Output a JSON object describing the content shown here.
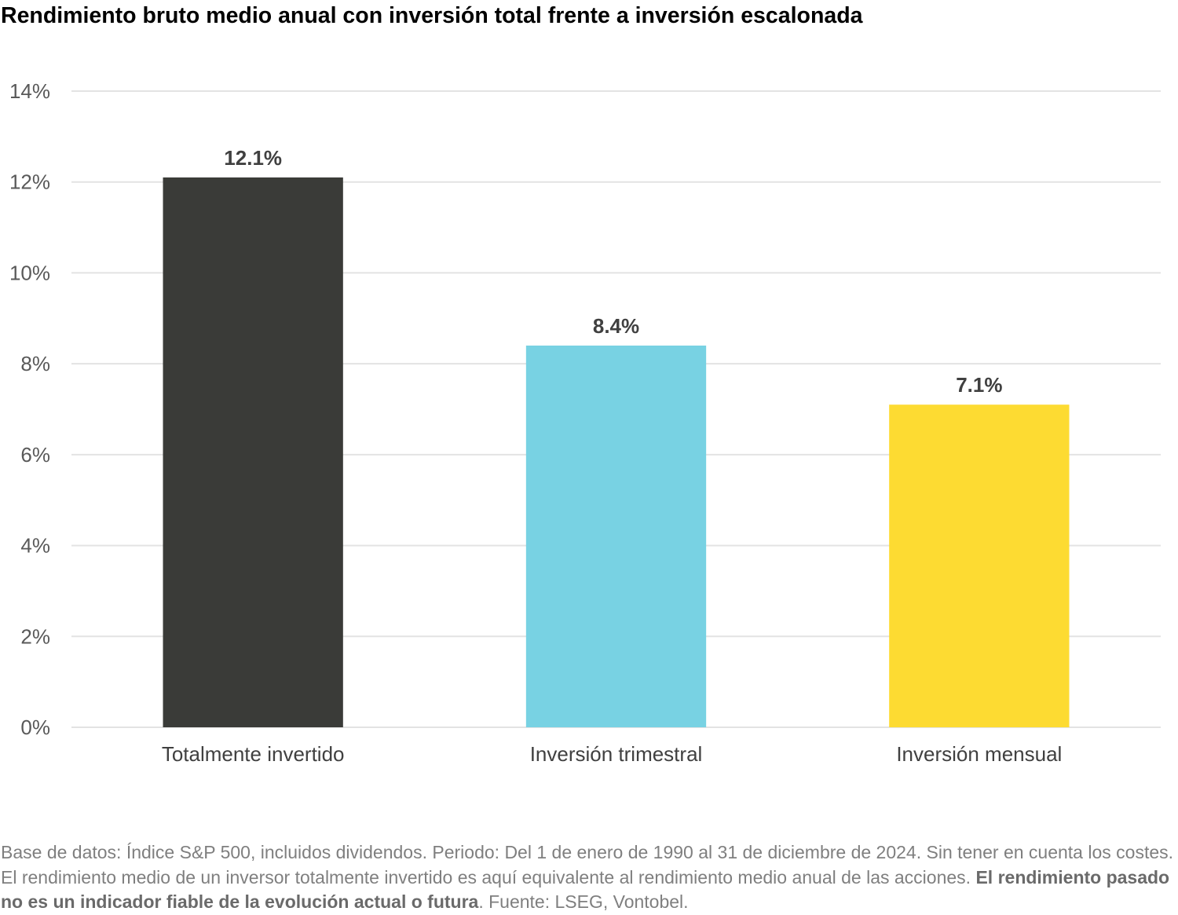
{
  "chart_data": {
    "type": "bar",
    "title": "Rendimiento bruto medio anual con inversión total frente a inversión escalonada",
    "xlabel": "",
    "ylabel": "",
    "categories": [
      "Totalmente invertido",
      "Inversión trimestral",
      "Inversión mensual"
    ],
    "values": [
      12.1,
      8.4,
      7.1
    ],
    "data_labels": [
      "12.1%",
      "8.4%",
      "7.1%"
    ],
    "colors": [
      "#3a3b38",
      "#78d2e3",
      "#fddb32"
    ],
    "ylim": [
      0,
      14
    ],
    "yticks": [
      0,
      2,
      4,
      6,
      8,
      10,
      12,
      14
    ],
    "ytick_labels": [
      "0%",
      "2%",
      "4%",
      "6%",
      "8%",
      "10%",
      "12%",
      "14%"
    ],
    "grid": true,
    "legend": "none"
  },
  "footer": {
    "text_1": "Base de datos: Índice S&P 500, incluidos dividendos. Periodo: Del 1 de enero de 1990 al 31 de diciembre de 2024. Sin tener en cuenta los costes. El rendimiento medio de un inversor totalmente invertido es aquí equivalente al rendimiento medio anual de las acciones. ",
    "bold": "El rendimiento pasado no es un indicador fiable de la evolución actual o futura",
    "text_2": ". Fuente: LSEG, Vontobel."
  }
}
